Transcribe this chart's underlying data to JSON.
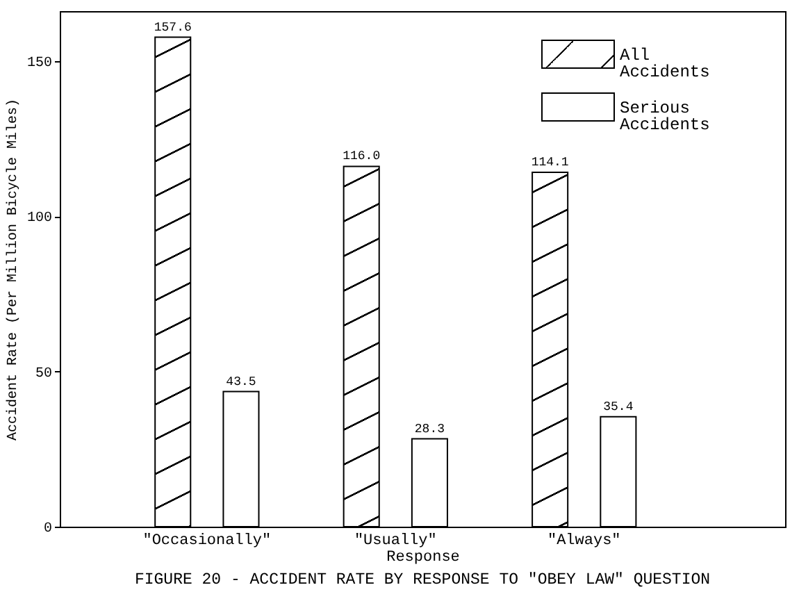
{
  "chart_data": {
    "type": "bar",
    "title": "FIGURE 20 - ACCIDENT RATE BY RESPONSE TO \"OBEY LAW\" QUESTION",
    "xlabel": "Response",
    "ylabel": "Accident Rate (Per Million Bicycle Miles)",
    "categories": [
      "\"Occasionally\"",
      "\"Usually\"",
      "\"Always\""
    ],
    "series": [
      {
        "name": "All Accidents",
        "color": "#000000",
        "values": [
          157.6,
          116.0,
          114.1
        ],
        "value_labels": [
          "157.6",
          "116.0",
          "114.1"
        ]
      },
      {
        "name": "Serious Accidents",
        "color": "#ffffff",
        "values": [
          43.5,
          28.3,
          35.4
        ],
        "value_labels": [
          "43.5",
          "28.3",
          "35.4"
        ]
      }
    ],
    "ylim": [
      0,
      166
    ],
    "yticks": [
      0,
      50,
      100,
      150
    ],
    "grid": false,
    "legend": "top right"
  }
}
